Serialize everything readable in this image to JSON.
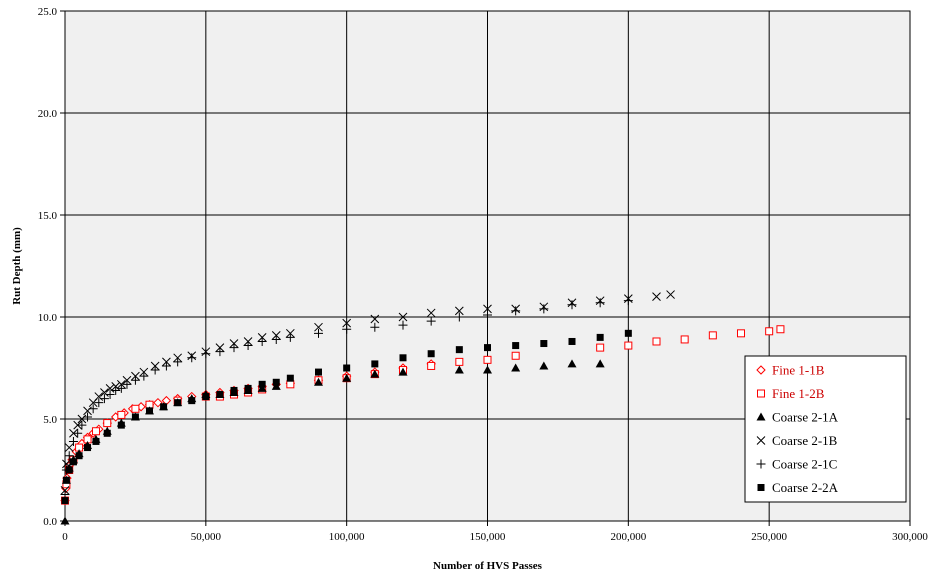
{
  "chart_data": {
    "type": "scatter",
    "title": "",
    "xlabel": "Number of HVS Passes",
    "ylabel": "Rut Depth (mm)",
    "xlim": [
      0,
      300000
    ],
    "ylim": [
      0,
      25
    ],
    "x_ticks": [
      "0",
      "50,000",
      "100,000",
      "150,000",
      "200,000",
      "250,000",
      "300,000"
    ],
    "y_ticks": [
      "0.0",
      "5.0",
      "10.0",
      "15.0",
      "20.0",
      "25.0"
    ],
    "grid": true,
    "legend_position": "right",
    "plot_background": "#f0f0f0",
    "series": [
      {
        "name": "Fine 1-1B",
        "marker": "diamond-open",
        "color": "#ff0000",
        "text_color": "#cc0000",
        "points": [
          [
            0,
            1.0
          ],
          [
            300,
            1.6
          ],
          [
            700,
            2.1
          ],
          [
            1500,
            2.7
          ],
          [
            2500,
            3.0
          ],
          [
            4000,
            3.4
          ],
          [
            6000,
            3.8
          ],
          [
            8000,
            4.1
          ],
          [
            10000,
            4.3
          ],
          [
            12000,
            4.5
          ],
          [
            15000,
            4.8
          ],
          [
            18000,
            5.1
          ],
          [
            21000,
            5.3
          ],
          [
            24000,
            5.5
          ],
          [
            27000,
            5.6
          ],
          [
            30000,
            5.7
          ],
          [
            33000,
            5.8
          ],
          [
            36000,
            5.9
          ],
          [
            40000,
            6.0
          ],
          [
            45000,
            6.1
          ],
          [
            50000,
            6.2
          ],
          [
            55000,
            6.3
          ],
          [
            60000,
            6.4
          ],
          [
            65000,
            6.5
          ],
          [
            70000,
            6.6
          ],
          [
            75000,
            6.7
          ],
          [
            80000,
            6.75
          ],
          [
            90000,
            6.9
          ],
          [
            100000,
            7.1
          ],
          [
            110000,
            7.3
          ],
          [
            120000,
            7.5
          ],
          [
            130000,
            7.7
          ]
        ]
      },
      {
        "name": "Fine 1-2B",
        "marker": "square-open",
        "color": "#ff0000",
        "text_color": "#cc0000",
        "points": [
          [
            0,
            1.0
          ],
          [
            500,
            1.8
          ],
          [
            1500,
            2.5
          ],
          [
            3000,
            3.0
          ],
          [
            5000,
            3.6
          ],
          [
            8000,
            4.0
          ],
          [
            11000,
            4.4
          ],
          [
            15000,
            4.8
          ],
          [
            20000,
            5.2
          ],
          [
            25000,
            5.5
          ],
          [
            30000,
            5.7
          ],
          [
            40000,
            5.9
          ],
          [
            50000,
            6.1
          ],
          [
            55000,
            6.1
          ],
          [
            60000,
            6.2
          ],
          [
            65000,
            6.3
          ],
          [
            70000,
            6.45
          ],
          [
            80000,
            6.7
          ],
          [
            90000,
            6.9
          ],
          [
            100000,
            7.0
          ],
          [
            110000,
            7.2
          ],
          [
            120000,
            7.4
          ],
          [
            130000,
            7.6
          ],
          [
            140000,
            7.8
          ],
          [
            150000,
            7.9
          ],
          [
            160000,
            8.1
          ],
          [
            190000,
            8.5
          ],
          [
            200000,
            8.6
          ],
          [
            210000,
            8.8
          ],
          [
            220000,
            8.9
          ],
          [
            230000,
            9.1
          ],
          [
            240000,
            9.2
          ],
          [
            250000,
            9.3
          ],
          [
            254000,
            9.4
          ]
        ]
      },
      {
        "name": "Coarse 2-1A",
        "marker": "triangle-filled",
        "color": "#000000",
        "text_color": "#000000",
        "points": [
          [
            0,
            0.0
          ],
          [
            500,
            2.0
          ],
          [
            1500,
            2.6
          ],
          [
            3000,
            3.0
          ],
          [
            5000,
            3.3
          ],
          [
            8000,
            3.7
          ],
          [
            11000,
            4.0
          ],
          [
            15000,
            4.4
          ],
          [
            20000,
            4.8
          ],
          [
            25000,
            5.1
          ],
          [
            30000,
            5.4
          ],
          [
            35000,
            5.6
          ],
          [
            40000,
            5.8
          ],
          [
            45000,
            6.0
          ],
          [
            50000,
            6.2
          ],
          [
            55000,
            6.2
          ],
          [
            60000,
            6.3
          ],
          [
            65000,
            6.4
          ],
          [
            70000,
            6.5
          ],
          [
            75000,
            6.6
          ],
          [
            90000,
            6.8
          ],
          [
            100000,
            7.0
          ],
          [
            110000,
            7.2
          ],
          [
            120000,
            7.3
          ],
          [
            140000,
            7.4
          ],
          [
            150000,
            7.4
          ],
          [
            160000,
            7.5
          ],
          [
            170000,
            7.6
          ],
          [
            180000,
            7.7
          ],
          [
            190000,
            7.7
          ]
        ]
      },
      {
        "name": "Coarse 2-1B",
        "marker": "x",
        "color": "#000000",
        "text_color": "#000000",
        "points": [
          [
            0,
            1.5
          ],
          [
            500,
            2.8
          ],
          [
            1500,
            3.6
          ],
          [
            3000,
            4.3
          ],
          [
            4500,
            4.7
          ],
          [
            6000,
            5.0
          ],
          [
            8000,
            5.4
          ],
          [
            10000,
            5.8
          ],
          [
            12000,
            6.1
          ],
          [
            14000,
            6.3
          ],
          [
            16000,
            6.5
          ],
          [
            18000,
            6.6
          ],
          [
            20000,
            6.7
          ],
          [
            22000,
            6.9
          ],
          [
            25000,
            7.1
          ],
          [
            28000,
            7.3
          ],
          [
            32000,
            7.6
          ],
          [
            36000,
            7.8
          ],
          [
            40000,
            8.0
          ],
          [
            45000,
            8.1
          ],
          [
            50000,
            8.3
          ],
          [
            55000,
            8.5
          ],
          [
            60000,
            8.7
          ],
          [
            65000,
            8.8
          ],
          [
            70000,
            9.0
          ],
          [
            75000,
            9.1
          ],
          [
            80000,
            9.2
          ],
          [
            90000,
            9.5
          ],
          [
            100000,
            9.7
          ],
          [
            110000,
            9.9
          ],
          [
            120000,
            10.0
          ],
          [
            130000,
            10.2
          ],
          [
            140000,
            10.3
          ],
          [
            150000,
            10.4
          ],
          [
            160000,
            10.4
          ],
          [
            170000,
            10.5
          ],
          [
            180000,
            10.7
          ],
          [
            190000,
            10.8
          ],
          [
            200000,
            10.9
          ],
          [
            210000,
            11.0
          ],
          [
            215000,
            11.1
          ]
        ]
      },
      {
        "name": "Coarse 2-1C",
        "marker": "plus",
        "color": "#000000",
        "text_color": "#000000",
        "points": [
          [
            0,
            1.3
          ],
          [
            500,
            2.5
          ],
          [
            1500,
            3.2
          ],
          [
            3000,
            3.9
          ],
          [
            4500,
            4.3
          ],
          [
            6000,
            4.7
          ],
          [
            8000,
            5.1
          ],
          [
            10000,
            5.5
          ],
          [
            12000,
            5.8
          ],
          [
            14000,
            6.0
          ],
          [
            16000,
            6.2
          ],
          [
            18000,
            6.4
          ],
          [
            20000,
            6.5
          ],
          [
            22000,
            6.7
          ],
          [
            25000,
            6.9
          ],
          [
            28000,
            7.1
          ],
          [
            32000,
            7.4
          ],
          [
            36000,
            7.6
          ],
          [
            40000,
            7.8
          ],
          [
            45000,
            8.0
          ],
          [
            50000,
            8.2
          ],
          [
            55000,
            8.3
          ],
          [
            60000,
            8.5
          ],
          [
            65000,
            8.6
          ],
          [
            70000,
            8.8
          ],
          [
            75000,
            8.9
          ],
          [
            80000,
            9.0
          ],
          [
            90000,
            9.2
          ],
          [
            100000,
            9.4
          ],
          [
            110000,
            9.5
          ],
          [
            120000,
            9.6
          ],
          [
            130000,
            9.8
          ],
          [
            140000,
            10.0
          ],
          [
            150000,
            10.1
          ],
          [
            160000,
            10.3
          ],
          [
            170000,
            10.4
          ],
          [
            180000,
            10.6
          ],
          [
            190000,
            10.7
          ],
          [
            200000,
            10.8
          ]
        ]
      },
      {
        "name": "Coarse 2-2A",
        "marker": "square-filled",
        "color": "#000000",
        "text_color": "#000000",
        "points": [
          [
            0,
            1.0
          ],
          [
            500,
            2.0
          ],
          [
            1500,
            2.5
          ],
          [
            3000,
            2.9
          ],
          [
            5000,
            3.2
          ],
          [
            8000,
            3.6
          ],
          [
            11000,
            3.9
          ],
          [
            15000,
            4.3
          ],
          [
            20000,
            4.7
          ],
          [
            25000,
            5.1
          ],
          [
            30000,
            5.4
          ],
          [
            35000,
            5.6
          ],
          [
            40000,
            5.8
          ],
          [
            45000,
            5.9
          ],
          [
            50000,
            6.1
          ],
          [
            55000,
            6.2
          ],
          [
            60000,
            6.4
          ],
          [
            65000,
            6.5
          ],
          [
            70000,
            6.7
          ],
          [
            75000,
            6.8
          ],
          [
            80000,
            7.0
          ],
          [
            90000,
            7.3
          ],
          [
            100000,
            7.5
          ],
          [
            110000,
            7.7
          ],
          [
            120000,
            8.0
          ],
          [
            130000,
            8.2
          ],
          [
            140000,
            8.4
          ],
          [
            150000,
            8.5
          ],
          [
            160000,
            8.6
          ],
          [
            170000,
            8.7
          ],
          [
            180000,
            8.8
          ],
          [
            190000,
            9.0
          ],
          [
            200000,
            9.2
          ]
        ]
      }
    ]
  }
}
